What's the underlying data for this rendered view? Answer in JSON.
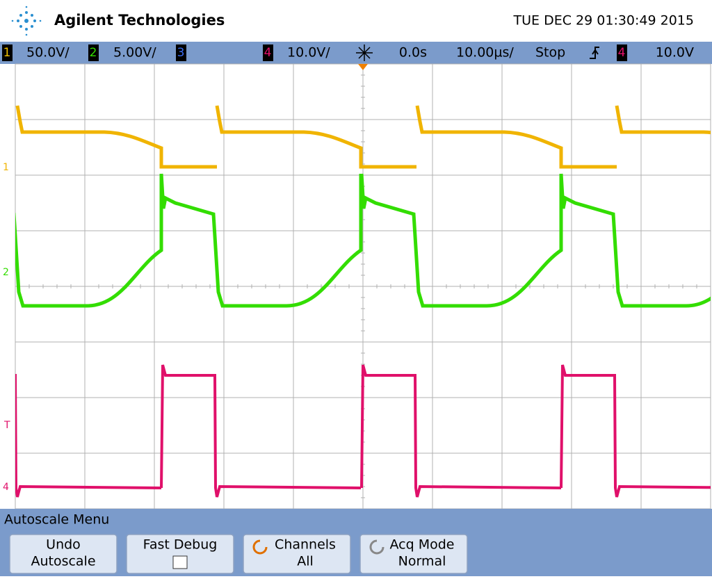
{
  "header": {
    "brand": "Agilent Technologies",
    "datetime": "TUE DEC 29 01:30:49 2015"
  },
  "status": {
    "ch1": {
      "label": "1",
      "scale": "50.0V/"
    },
    "ch2": {
      "label": "2",
      "scale": "5.00V/"
    },
    "ch3": {
      "label": "3"
    },
    "ch4": {
      "label": "4",
      "scale": "10.0V/"
    },
    "delay": "0.0s",
    "timebase": "10.00µs/",
    "run_state": "Stop",
    "trigger_source": "4",
    "trigger_level": "10.0V"
  },
  "markers": {
    "ch1": "1",
    "ch2": "2",
    "trigger": "T",
    "ch4": "4"
  },
  "menu": {
    "title": "Autoscale Menu",
    "buttons": [
      [
        "Undo",
        "Autoscale"
      ],
      [
        "Fast Debug"
      ],
      [
        "Channels",
        "All"
      ],
      [
        "Acq Mode",
        "Normal"
      ]
    ]
  }
}
